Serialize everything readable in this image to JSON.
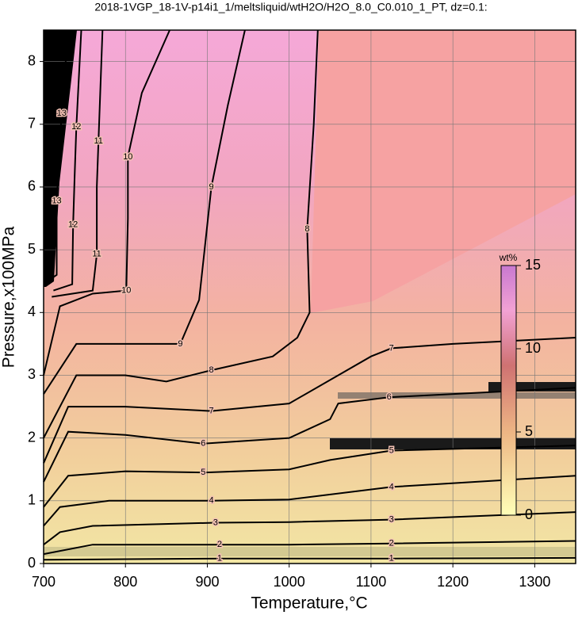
{
  "chart_data": {
    "type": "contour",
    "title": "2018-1VGP_18-1V-p14i1_1/meltsliquid/wtH2O/H2O_8.0_C0.010_1_PT, dz=0.1:",
    "x_label": "Temperature,°C",
    "y_label": "Pressure,x100MPa",
    "xlim": [
      700,
      1350
    ],
    "ylim": [
      0,
      8.5
    ],
    "xticks": [
      700,
      800,
      900,
      1000,
      1100,
      1200,
      1300
    ],
    "yticks": [
      0,
      1,
      2,
      3,
      4,
      5,
      6,
      7,
      8
    ],
    "grid": true,
    "contours": [
      {
        "level": 1,
        "x": [
          700,
          800,
          915,
          1000,
          1125,
          1350
        ],
        "y": [
          0.06,
          0.07,
          0.08,
          0.08,
          0.08,
          0.09
        ]
      },
      {
        "level": 2,
        "x": [
          700,
          760,
          850,
          915,
          1000,
          1125,
          1350
        ],
        "y": [
          0.15,
          0.3,
          0.3,
          0.3,
          0.3,
          0.32,
          0.36
        ]
      },
      {
        "level": 3,
        "x": [
          700,
          720,
          760,
          910,
          1000,
          1125,
          1350
        ],
        "y": [
          0.3,
          0.5,
          0.6,
          0.65,
          0.66,
          0.7,
          0.82
        ]
      },
      {
        "level": 4,
        "x": [
          700,
          720,
          780,
          905,
          1000,
          1125,
          1350
        ],
        "y": [
          0.6,
          0.9,
          1.0,
          1.0,
          1.02,
          1.22,
          1.4
        ]
      },
      {
        "level": 5,
        "x": [
          700,
          730,
          800,
          895,
          1000,
          1050,
          1125,
          1350
        ],
        "y": [
          0.9,
          1.4,
          1.47,
          1.45,
          1.5,
          1.65,
          1.8,
          1.88
        ]
      },
      {
        "level": 6,
        "x": [
          700,
          730,
          800,
          895,
          1000,
          1050,
          1060,
          1122,
          1350
        ],
        "y": [
          1.3,
          2.1,
          2.05,
          1.91,
          2.0,
          2.3,
          2.55,
          2.65,
          2.8
        ]
      },
      {
        "level": 7,
        "x": [
          700,
          730,
          800,
          905,
          1000,
          1100,
          1125,
          1200,
          1350
        ],
        "y": [
          1.6,
          2.5,
          2.5,
          2.43,
          2.55,
          3.3,
          3.43,
          3.5,
          3.6
        ]
      },
      {
        "level": 8,
        "x": [
          700,
          740,
          800,
          850,
          905,
          980,
          1010,
          1025,
          1022,
          1030,
          1035
        ],
        "y": [
          2.0,
          3.0,
          3.0,
          2.9,
          3.08,
          3.3,
          3.6,
          4.0,
          5.33,
          7.0,
          8.5
        ]
      },
      {
        "level": 9,
        "x": [
          700,
          740,
          800,
          867,
          890,
          905,
          925,
          946
        ],
        "y": [
          2.7,
          3.5,
          3.5,
          3.5,
          4.2,
          6.0,
          7.3,
          8.5
        ]
      },
      {
        "level": 10,
        "x": [
          700,
          720,
          760,
          801,
          803,
          803,
          820,
          854
        ],
        "y": [
          3.0,
          4.1,
          4.3,
          4.35,
          5.5,
          6.48,
          7.5,
          8.5
        ]
      },
      {
        "level": 11,
        "x": [
          710,
          760,
          765,
          765,
          767,
          772
        ],
        "y": [
          4.25,
          4.35,
          4.93,
          6.0,
          6.73,
          8.5
        ]
      },
      {
        "level": 12,
        "x": [
          712,
          735,
          736,
          738,
          740,
          746
        ],
        "y": [
          4.35,
          4.45,
          5.4,
          6.2,
          6.96,
          8.5
        ]
      },
      {
        "level": 13,
        "x": [
          705,
          716,
          716,
          722,
          730
        ],
        "y": [
          4.5,
          4.6,
          5.78,
          7.17,
          8.5
        ]
      }
    ],
    "colorbar": {
      "label": "wt%",
      "lim": [
        0,
        15
      ],
      "ticks": [
        0,
        5,
        10,
        15
      ]
    }
  }
}
